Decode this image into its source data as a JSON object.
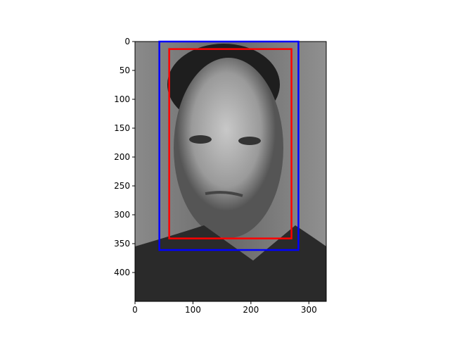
{
  "chart_data": {
    "type": "image",
    "xlim": [
      0,
      330
    ],
    "ylim": [
      450,
      0
    ],
    "xticks": [
      0,
      100,
      200,
      300
    ],
    "yticks": [
      0,
      50,
      100,
      150,
      200,
      250,
      300,
      350,
      400
    ],
    "boxes": [
      {
        "color": "#0000ff",
        "x0": 42,
        "y0": 0,
        "x1": 282,
        "y1": 361
      },
      {
        "color": "#ff0000",
        "x0": 59,
        "y0": 13,
        "x1": 270,
        "y1": 341
      }
    ]
  }
}
